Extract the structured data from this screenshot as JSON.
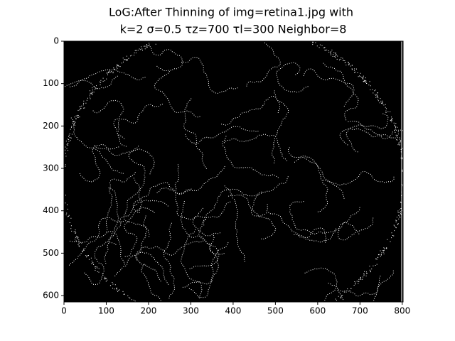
{
  "chart_data": {
    "type": "image",
    "title": [
      "LoG:After Thinning of img=retina1.jpg with",
      "k=2 σ=0.5 τz=700 τl=300 Neighbor=8"
    ],
    "xlim": [
      0,
      802
    ],
    "ylim": [
      615,
      0
    ],
    "xticks": [
      0,
      100,
      200,
      300,
      400,
      500,
      600,
      700,
      800
    ],
    "yticks": [
      0,
      100,
      200,
      300,
      400,
      500,
      600
    ]
  }
}
